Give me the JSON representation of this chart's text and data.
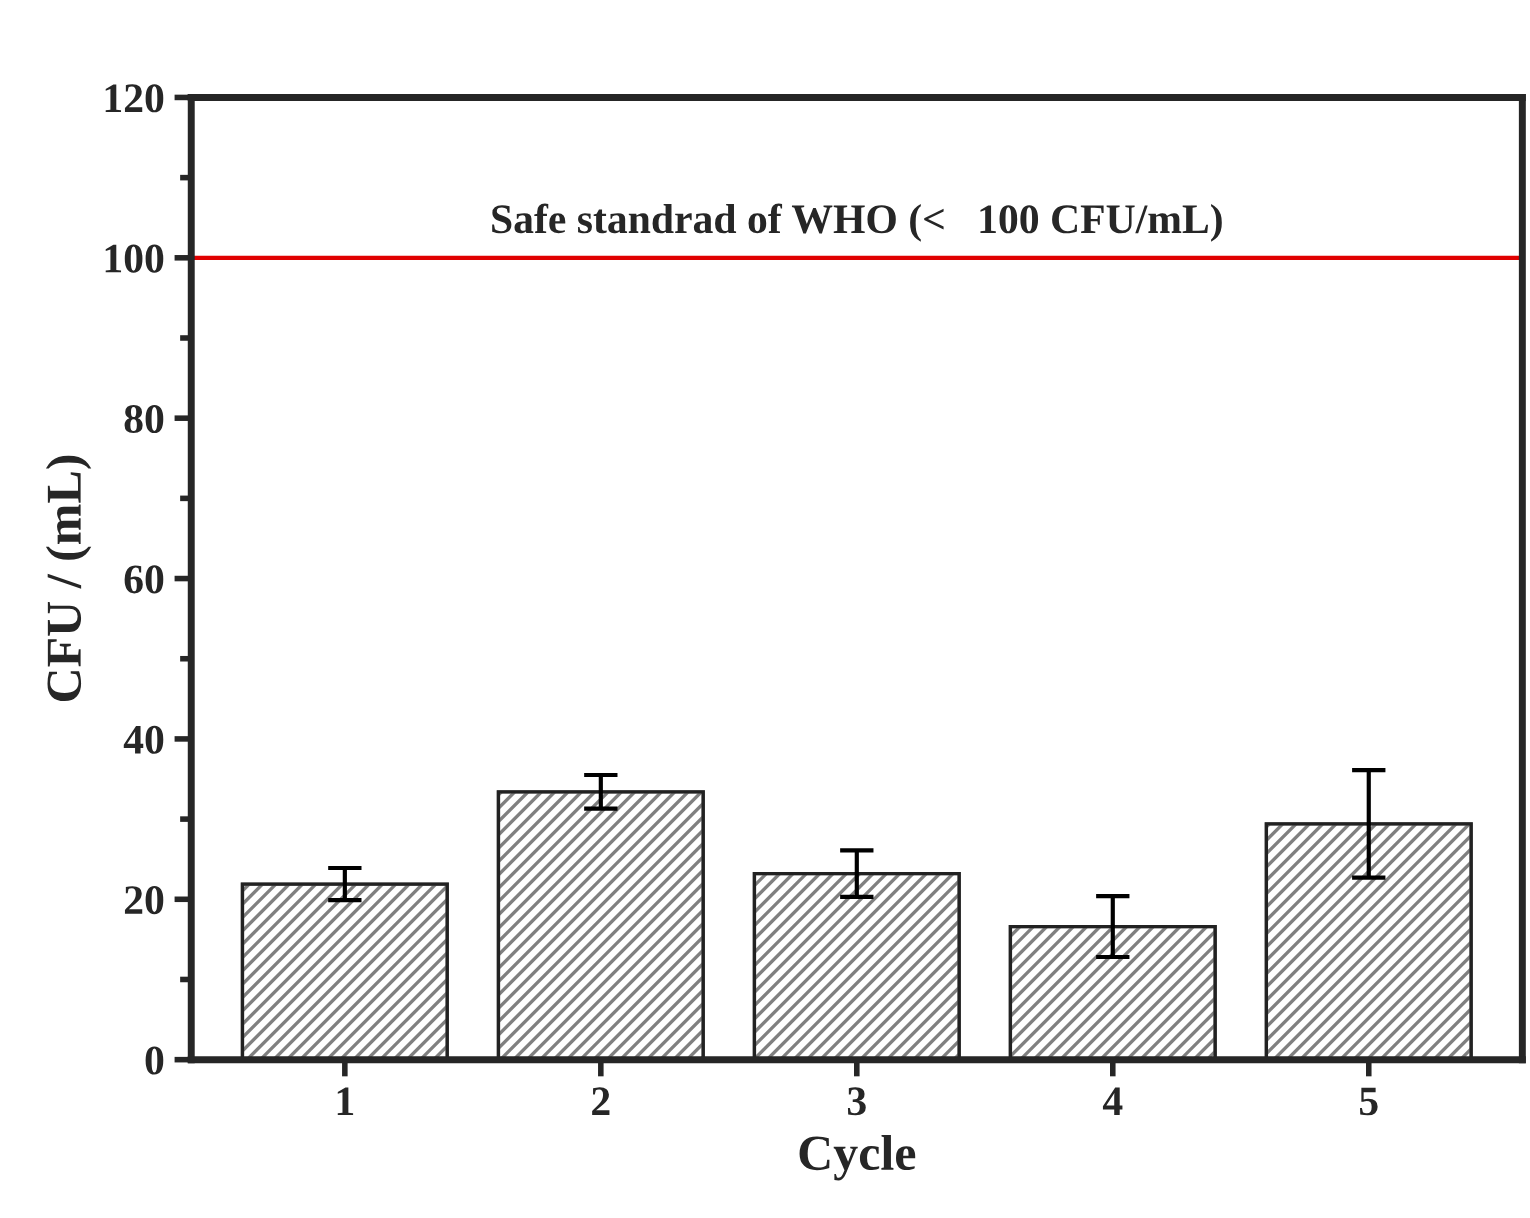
{
  "chart_data": {
    "type": "bar",
    "xlabel": "Cycle",
    "ylabel": "CFU / (mL)",
    "categories": [
      "1",
      "2",
      "3",
      "4",
      "5"
    ],
    "values": [
      21.9,
      33.4,
      23.2,
      16.6,
      29.4
    ],
    "errors": [
      2.0,
      2.1,
      2.9,
      3.8,
      6.7
    ],
    "color": "#808080",
    "ylim": [
      0,
      120
    ],
    "yticks": [
      0,
      20,
      40,
      60,
      80,
      100,
      120
    ],
    "ref_lines": [
      {
        "axis": "y",
        "value": 100,
        "label": "Safe standrad of WHO (<   100 CFU/mL)",
        "color": "#e00000"
      }
    ],
    "grid": false,
    "legend": false
  }
}
